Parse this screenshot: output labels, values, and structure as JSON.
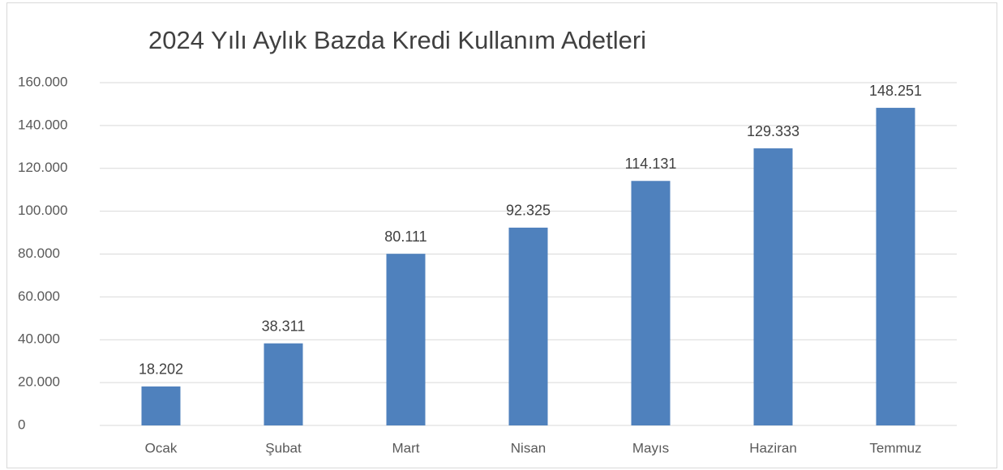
{
  "chart_data": {
    "type": "bar",
    "title": "2024 Yılı Aylık Bazda Kredi Kullanım Adetleri",
    "categories": [
      "Ocak",
      "Şubat",
      "Mart",
      "Nisan",
      "Mayıs",
      "Haziran",
      "Temmuz"
    ],
    "values": [
      18202,
      38311,
      80111,
      92325,
      114131,
      129333,
      148251
    ],
    "value_labels": [
      "18.202",
      "38.311",
      "80.111",
      "92.325",
      "114.131",
      "129.333",
      "148.251"
    ],
    "color": "#4f81bd",
    "ylim": [
      0,
      160000
    ],
    "yticks": [
      0,
      {
        "value": 20000,
        "label": "20.000"
      },
      {
        "value": 40000,
        "label": "40.000"
      },
      {
        "value": 60000,
        "label": "60.000"
      },
      {
        "value": 80000,
        "label": "80.000"
      },
      {
        "value": 100000,
        "label": "100.000"
      },
      {
        "value": 120000,
        "label": "120.000"
      },
      {
        "value": 140000,
        "label": "140.000"
      },
      {
        "value": 160000,
        "label": "160.000"
      }
    ],
    "grid": true
  }
}
